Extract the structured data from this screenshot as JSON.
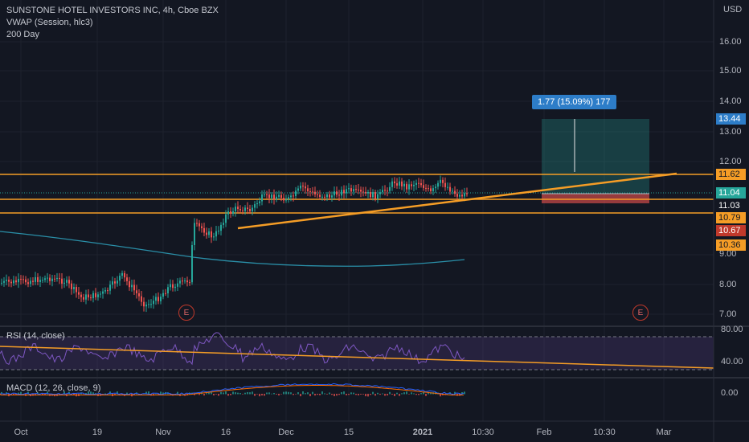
{
  "header": {
    "symbol_title": "SUNSTONE HOTEL INVESTORS INC, 4h, Cboe BZX",
    "indicator_vwap": "VWAP (Session, hlc3)",
    "indicator_ma": "200 Day"
  },
  "currency": "USD",
  "price_axis": [
    "16.00",
    "15.00",
    "14.00",
    "13.00",
    "12.00",
    "9.00",
    "8.00",
    "7.00"
  ],
  "price_labels": [
    {
      "text": "13.44",
      "bg": "#2d7dc8",
      "fg": "#ffffff"
    },
    {
      "text": "11.62",
      "bg": "#f59d26",
      "fg": "#131722"
    },
    {
      "text": "11.04",
      "bg": "#26a69a",
      "fg": "#ffffff"
    },
    {
      "text": "11.03",
      "bg": "#131722",
      "fg": "#ffffff"
    },
    {
      "text": "10.79",
      "bg": "#f59d26",
      "fg": "#131722"
    },
    {
      "text": "10.67",
      "bg": "#c0392b",
      "fg": "#ffffff"
    },
    {
      "text": "10.36",
      "bg": "#f59d26",
      "fg": "#131722"
    }
  ],
  "measure_label": "1.77 (15.09%) 177",
  "earnings_badge": "E",
  "rsi": {
    "title": "RSI (14, close)",
    "levels": [
      "80.00",
      "40.00"
    ]
  },
  "macd": {
    "title": "MACD (12, 26, close, 9)",
    "level": "0.00"
  },
  "time_axis": [
    "Oct",
    "19",
    "Nov",
    "16",
    "Dec",
    "15",
    "2021",
    "10:30",
    "Feb",
    "10:30",
    "Mar"
  ],
  "colors": {
    "up": "#26a69a",
    "down": "#ef5350",
    "orange": "#f59d26",
    "ma": "#2a8fa8",
    "bg": "#131722"
  }
}
